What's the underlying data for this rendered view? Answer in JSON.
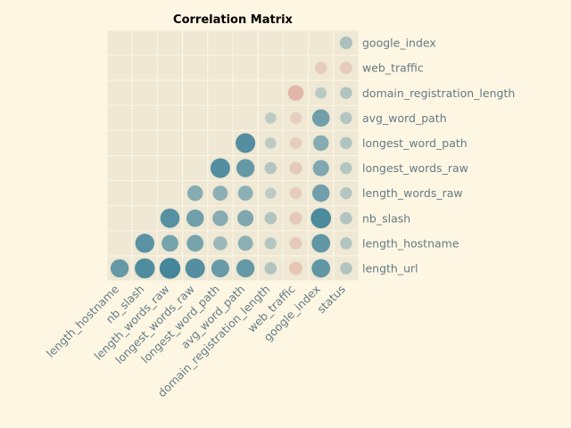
{
  "chart_data": {
    "type": "heatmap",
    "title": "Correlation Matrix",
    "x_labels": [
      "length_hostname",
      "nb_slash",
      "length_words_raw",
      "longest_words_raw",
      "longest_word_path",
      "avg_word_path",
      "domain_registration_length",
      "web_traffic",
      "google_index",
      "status"
    ],
    "y_labels": [
      "google_index",
      "web_traffic",
      "domain_registration_length",
      "avg_word_path",
      "longest_word_path",
      "longest_words_raw",
      "length_words_raw",
      "nb_slash",
      "length_hostname",
      "length_url"
    ],
    "value_range": [
      -1,
      1
    ],
    "colors": {
      "positive": "#3a7f97",
      "negative": "#d9958a",
      "cell_background": "#eee8d5",
      "grid": "#fdf6e3"
    },
    "cells": [
      {
        "row": "google_index",
        "col": "status",
        "value": 0.24
      },
      {
        "row": "web_traffic",
        "col": "google_index",
        "value": -0.2
      },
      {
        "row": "web_traffic",
        "col": "status",
        "value": -0.22
      },
      {
        "row": "domain_registration_length",
        "col": "web_traffic",
        "value": -0.5
      },
      {
        "row": "domain_registration_length",
        "col": "google_index",
        "value": 0.14
      },
      {
        "row": "domain_registration_length",
        "col": "status",
        "value": 0.2
      },
      {
        "row": "avg_word_path",
        "col": "domain_registration_length",
        "value": 0.12
      },
      {
        "row": "avg_word_path",
        "col": "web_traffic",
        "value": -0.16
      },
      {
        "row": "avg_word_path",
        "col": "google_index",
        "value": 0.65
      },
      {
        "row": "avg_word_path",
        "col": "status",
        "value": 0.18
      },
      {
        "row": "longest_word_path",
        "col": "avg_word_path",
        "value": 0.85
      },
      {
        "row": "longest_word_path",
        "col": "domain_registration_length",
        "value": 0.12
      },
      {
        "row": "longest_word_path",
        "col": "web_traffic",
        "value": -0.17
      },
      {
        "row": "longest_word_path",
        "col": "google_index",
        "value": 0.5
      },
      {
        "row": "longest_word_path",
        "col": "status",
        "value": 0.2
      },
      {
        "row": "longest_words_raw",
        "col": "longest_word_path",
        "value": 0.85
      },
      {
        "row": "longest_words_raw",
        "col": "avg_word_path",
        "value": 0.72
      },
      {
        "row": "longest_words_raw",
        "col": "domain_registration_length",
        "value": 0.18
      },
      {
        "row": "longest_words_raw",
        "col": "web_traffic",
        "value": -0.24
      },
      {
        "row": "longest_words_raw",
        "col": "google_index",
        "value": 0.55
      },
      {
        "row": "longest_words_raw",
        "col": "status",
        "value": 0.18
      },
      {
        "row": "length_words_raw",
        "col": "longest_words_raw",
        "value": 0.5
      },
      {
        "row": "length_words_raw",
        "col": "longest_word_path",
        "value": 0.45
      },
      {
        "row": "length_words_raw",
        "col": "avg_word_path",
        "value": 0.45
      },
      {
        "row": "length_words_raw",
        "col": "domain_registration_length",
        "value": 0.12
      },
      {
        "row": "length_words_raw",
        "col": "web_traffic",
        "value": -0.18
      },
      {
        "row": "length_words_raw",
        "col": "google_index",
        "value": 0.65
      },
      {
        "row": "length_words_raw",
        "col": "status",
        "value": 0.18
      },
      {
        "row": "nb_slash",
        "col": "length_words_raw",
        "value": 0.82
      },
      {
        "row": "nb_slash",
        "col": "longest_words_raw",
        "value": 0.65
      },
      {
        "row": "nb_slash",
        "col": "longest_word_path",
        "value": 0.5
      },
      {
        "row": "nb_slash",
        "col": "avg_word_path",
        "value": 0.55
      },
      {
        "row": "nb_slash",
        "col": "domain_registration_length",
        "value": 0.2
      },
      {
        "row": "nb_slash",
        "col": "web_traffic",
        "value": -0.24
      },
      {
        "row": "nb_slash",
        "col": "google_index",
        "value": 0.9
      },
      {
        "row": "nb_slash",
        "col": "status",
        "value": 0.2
      },
      {
        "row": "length_hostname",
        "col": "nb_slash",
        "value": 0.8
      },
      {
        "row": "length_hostname",
        "col": "length_words_raw",
        "value": 0.6
      },
      {
        "row": "length_hostname",
        "col": "longest_words_raw",
        "value": 0.6
      },
      {
        "row": "length_hostname",
        "col": "longest_word_path",
        "value": 0.35
      },
      {
        "row": "length_hostname",
        "col": "avg_word_path",
        "value": 0.45
      },
      {
        "row": "length_hostname",
        "col": "domain_registration_length",
        "value": 0.18
      },
      {
        "row": "length_hostname",
        "col": "web_traffic",
        "value": -0.22
      },
      {
        "row": "length_hostname",
        "col": "google_index",
        "value": 0.75
      },
      {
        "row": "length_hostname",
        "col": "status",
        "value": 0.18
      },
      {
        "row": "length_url",
        "col": "length_hostname",
        "value": 0.72
      },
      {
        "row": "length_url",
        "col": "nb_slash",
        "value": 0.88
      },
      {
        "row": "length_url",
        "col": "length_words_raw",
        "value": 0.95
      },
      {
        "row": "length_url",
        "col": "longest_words_raw",
        "value": 0.85
      },
      {
        "row": "length_url",
        "col": "longest_word_path",
        "value": 0.7
      },
      {
        "row": "length_url",
        "col": "avg_word_path",
        "value": 0.72
      },
      {
        "row": "length_url",
        "col": "domain_registration_length",
        "value": 0.2
      },
      {
        "row": "length_url",
        "col": "web_traffic",
        "value": -0.3
      },
      {
        "row": "length_url",
        "col": "google_index",
        "value": 0.75
      },
      {
        "row": "length_url",
        "col": "status",
        "value": 0.2
      }
    ]
  }
}
